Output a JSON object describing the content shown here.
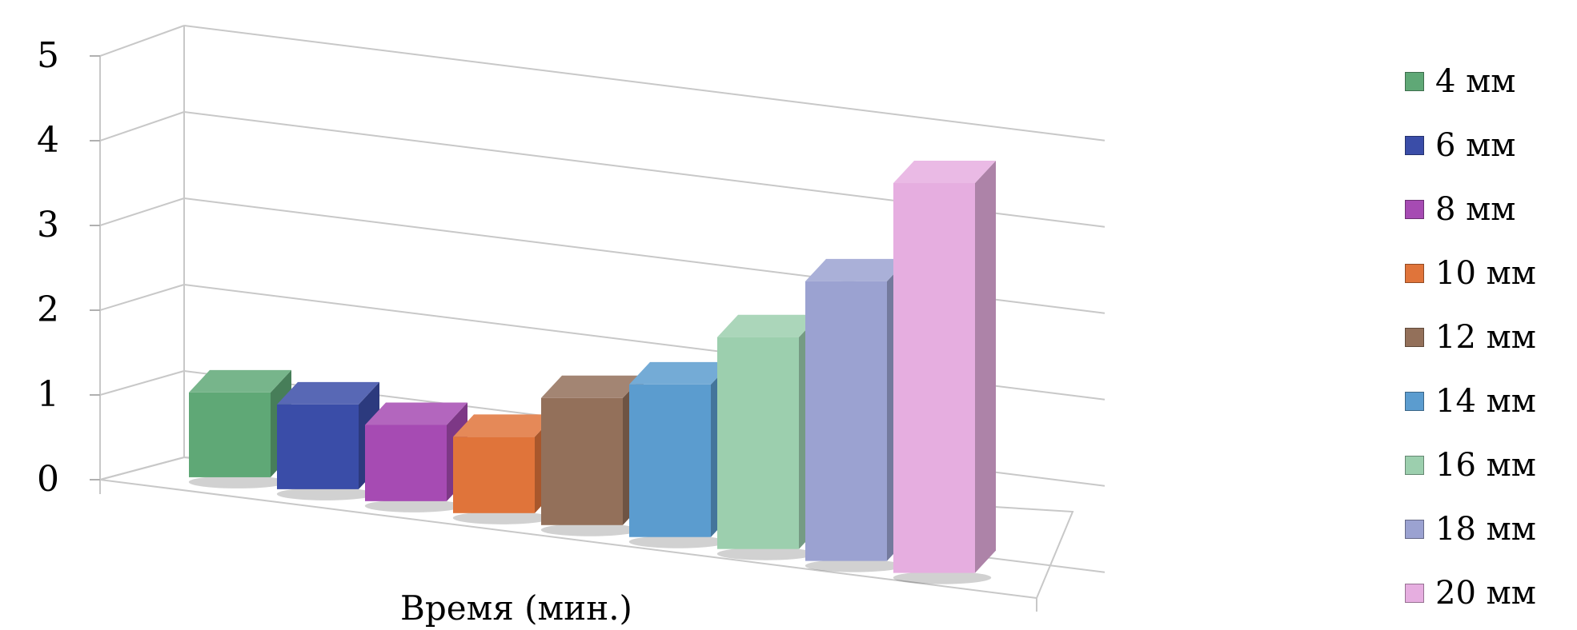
{
  "chart_data": {
    "type": "bar",
    "xlabel": "Время (мин.)",
    "ylabel": "",
    "ylim": [
      0,
      5
    ],
    "yticks": [
      "0",
      "1",
      "2",
      "3",
      "4",
      "5"
    ],
    "grid": true,
    "legend_position": "right",
    "series": [
      {
        "name": "4 мм",
        "value": 1.0,
        "color": "#5fa876"
      },
      {
        "name": "6 мм",
        "value": 1.0,
        "color": "#3a4da8"
      },
      {
        "name": "8 мм",
        "value": 0.9,
        "color": "#a64bb3"
      },
      {
        "name": "10 мм",
        "value": 0.9,
        "color": "#e0743a"
      },
      {
        "name": "12 мм",
        "value": 1.5,
        "color": "#93705a"
      },
      {
        "name": "14 мм",
        "value": 1.8,
        "color": "#5b9ccf"
      },
      {
        "name": "16 мм",
        "value": 2.5,
        "color": "#9ccfae"
      },
      {
        "name": "18 мм",
        "value": 3.3,
        "color": "#9ba2d1"
      },
      {
        "name": "20 мм",
        "value": 4.6,
        "color": "#e6aee0"
      }
    ]
  }
}
